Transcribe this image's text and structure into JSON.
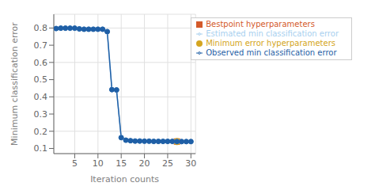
{
  "chart_data": {
    "type": "line",
    "x_label": "Iteration counts",
    "y_label": "Minimum classification error",
    "x": [
      1,
      2,
      3,
      4,
      5,
      6,
      7,
      8,
      9,
      10,
      11,
      12,
      13,
      14,
      15,
      16,
      17,
      18,
      19,
      20,
      21,
      22,
      23,
      24,
      25,
      26,
      27,
      28,
      29,
      30
    ],
    "series": [
      {
        "name": "Estimated min classification error",
        "type": "line",
        "marker": "circle",
        "color": "#a8d0ef",
        "values": [
          0.797,
          0.799,
          0.799,
          0.799,
          0.799,
          0.795,
          0.793,
          0.793,
          0.793,
          0.793,
          0.793,
          0.779,
          0.442,
          0.44,
          0.163,
          0.148,
          0.145,
          0.143,
          0.143,
          0.142,
          0.142,
          0.141,
          0.141,
          0.141,
          0.141,
          0.141,
          0.14,
          0.14,
          0.14,
          0.14
        ]
      },
      {
        "name": "Observed min classification error",
        "type": "line",
        "marker": "circle",
        "color": "#1f5fa6",
        "values": [
          0.797,
          0.799,
          0.799,
          0.799,
          0.799,
          0.795,
          0.793,
          0.793,
          0.793,
          0.793,
          0.793,
          0.779,
          0.442,
          0.44,
          0.163,
          0.148,
          0.145,
          0.143,
          0.143,
          0.142,
          0.142,
          0.141,
          0.141,
          0.141,
          0.141,
          0.141,
          0.14,
          0.14,
          0.14,
          0.14
        ]
      },
      {
        "name": "Bestpoint hyperparameters",
        "type": "scatter",
        "marker": "square",
        "color": "#d45a2a",
        "x": [
          27
        ],
        "values": [
          0.14
        ]
      },
      {
        "name": "Minimum error hyperparameters",
        "type": "scatter",
        "marker": "circle",
        "color": "#d4a520",
        "x": [
          27
        ],
        "values": [
          0.14
        ]
      }
    ],
    "xlim": [
      0.5,
      31
    ],
    "ylim": [
      0.07,
      0.88
    ],
    "xticks": [
      5,
      10,
      15,
      20,
      25,
      30
    ],
    "yticks": [
      0.1,
      0.2,
      0.3,
      0.4,
      0.5,
      0.6,
      0.7,
      0.8
    ],
    "grid": true,
    "legend": "upper right"
  }
}
